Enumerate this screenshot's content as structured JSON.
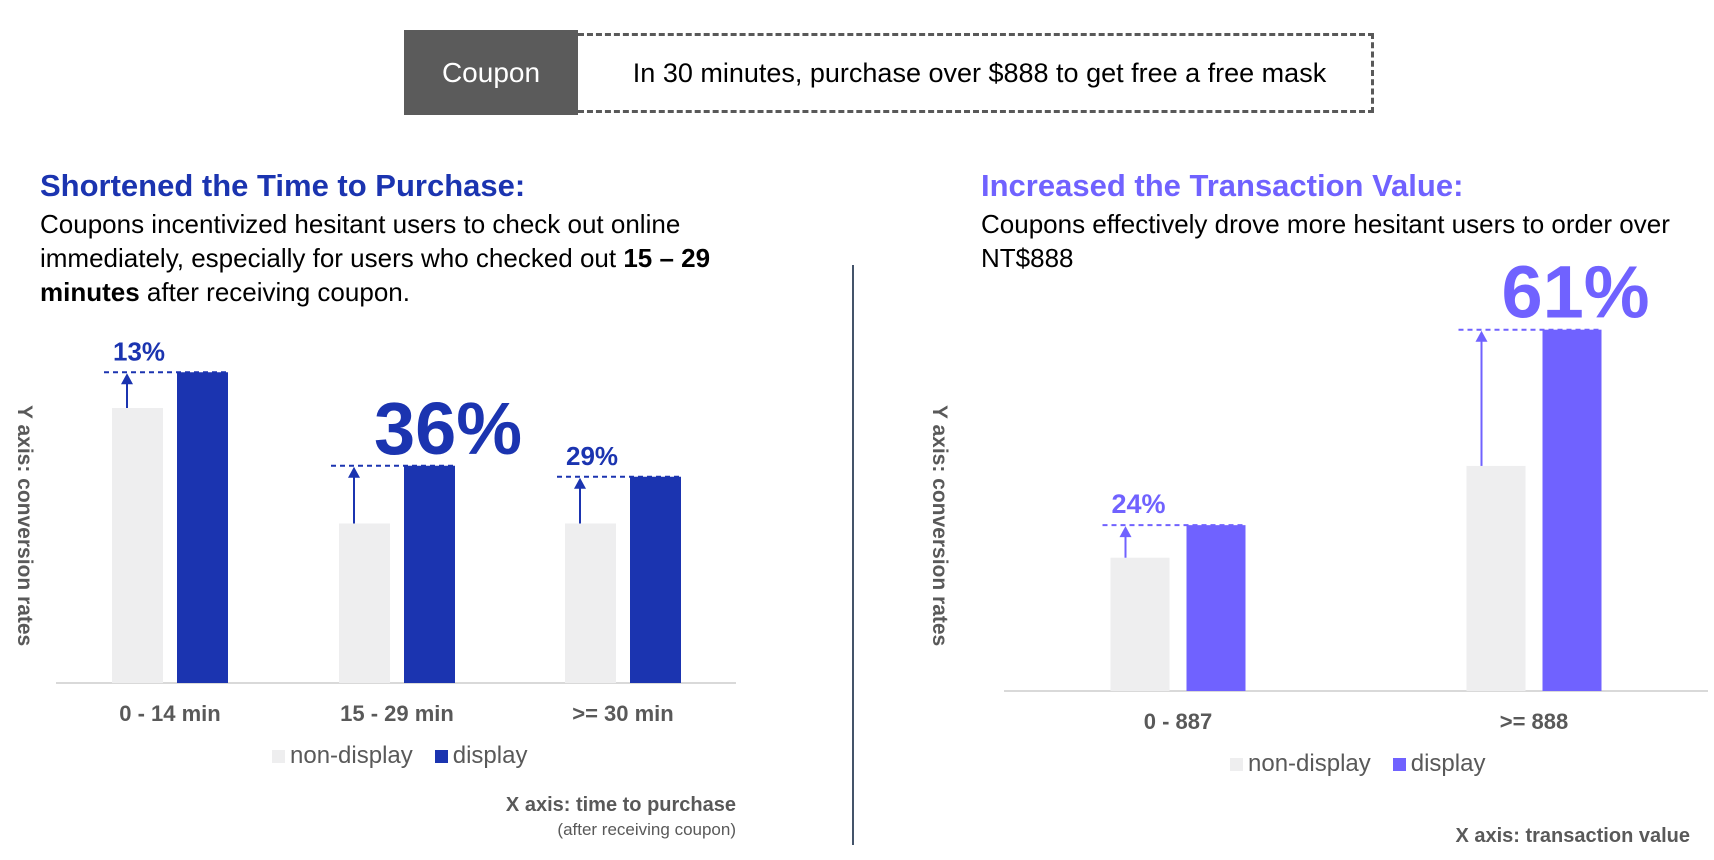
{
  "coupon": {
    "label": "Coupon",
    "text": "In 30 minutes, purchase over $888 to get free a free mask"
  },
  "left_panel": {
    "heading": "Shortened the Time to Purchase:",
    "desc_part1": "Coupons incentivized hesitant users to check out online immediately, especially for users who checked out ",
    "desc_bold": "15 – 29 minutes",
    "desc_part2": " after receiving coupon.",
    "y_axis_title": "Y axis: conversion rates",
    "x_axis_title": "X axis: time to purchase",
    "x_axis_note": "(after receiving coupon)",
    "legend": [
      {
        "label": "non-display",
        "color": "#eeeeef"
      },
      {
        "label": "display",
        "color": "#1b34b0"
      }
    ]
  },
  "right_panel": {
    "heading": "Increased the Transaction Value:",
    "desc": "Coupons effectively drove more hesitant users to order over NT$888",
    "y_axis_title": "Y axis: conversion rates",
    "x_axis_title": "X axis: transaction value",
    "legend": [
      {
        "label": "non-display",
        "color": "#eeeeef"
      },
      {
        "label": "display",
        "color": "#7062ff"
      }
    ]
  },
  "colors": {
    "left_accent": "#1b34b0",
    "right_accent": "#7062ff",
    "non_display": "#eeeeef",
    "axis_text": "#595959",
    "divider": "#44546a"
  },
  "chart_data": [
    {
      "type": "bar",
      "categories": [
        "0 - 14 min",
        "15 - 29 min",
        ">= 30 min"
      ],
      "series": [
        {
          "name": "non-display",
          "values": [
            100,
            58,
            58
          ]
        },
        {
          "name": "display",
          "values": [
            113,
            79,
            75
          ]
        }
      ],
      "uplift_labels": [
        "13%",
        "36%",
        "29%"
      ],
      "ylim": [
        0,
        120
      ],
      "xlabel": "X axis: time to purchase",
      "ylabel": "Y axis: conversion rates",
      "grid": false,
      "legend_position": "bottom"
    },
    {
      "type": "bar",
      "categories": [
        "0 - 887",
        ">= 888"
      ],
      "series": [
        {
          "name": "non-display",
          "values": [
            45,
            76
          ]
        },
        {
          "name": "display",
          "values": [
            56,
            122
          ]
        }
      ],
      "uplift_labels": [
        "24%",
        "61%"
      ],
      "ylim": [
        0,
        130
      ],
      "xlabel": "X axis: transaction value",
      "ylabel": "Y axis: conversion rates",
      "grid": false,
      "legend_position": "bottom"
    }
  ]
}
